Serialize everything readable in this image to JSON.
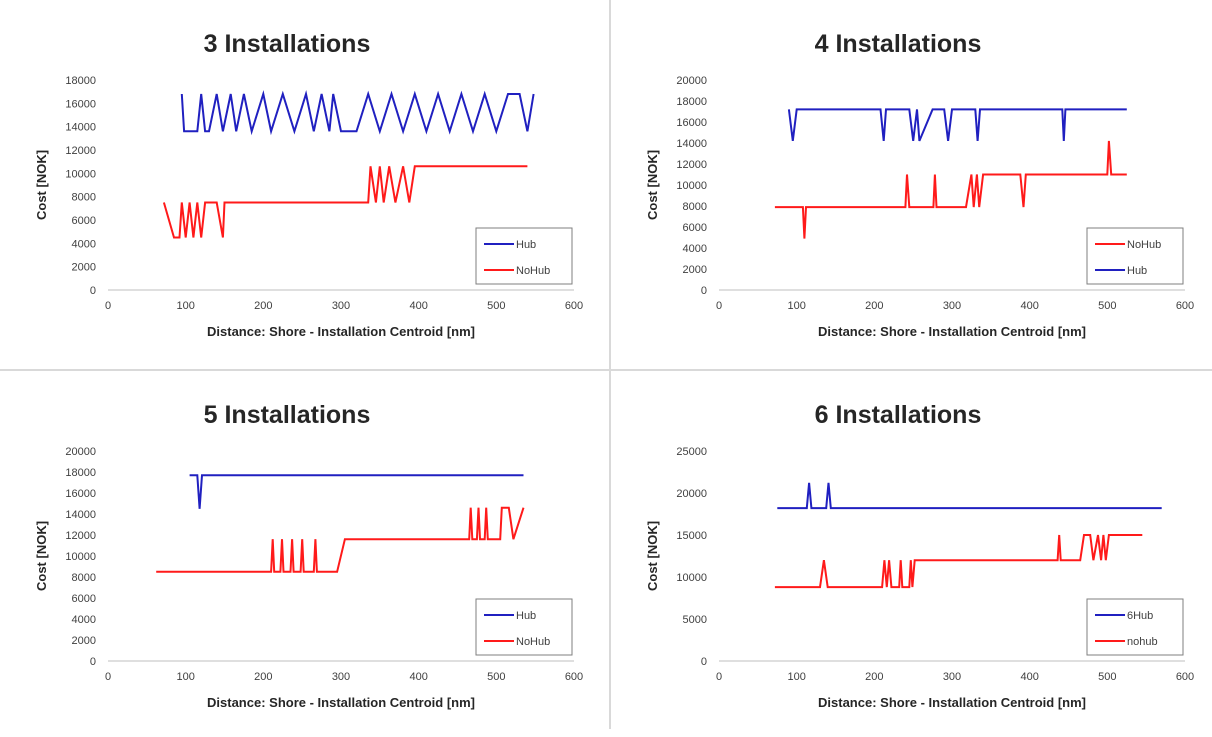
{
  "colors": {
    "hub": "#2020c0",
    "nohub": "#ff1a1a",
    "axis": "#bfbfbf",
    "text": "#262626"
  },
  "chart_data": [
    {
      "type": "line",
      "title": "3 Installations",
      "xlabel": "Distance: Shore - Installation Centroid [nm]",
      "ylabel": "Cost [NOK]",
      "xlim": [
        0,
        600
      ],
      "xticks": [
        0,
        100,
        200,
        300,
        400,
        500,
        600
      ],
      "ylim": [
        0,
        18000
      ],
      "yticks": [
        0,
        2000,
        4000,
        6000,
        8000,
        10000,
        12000,
        14000,
        16000,
        18000
      ],
      "legend_position": "bottom-right",
      "series": [
        {
          "name": "Hub",
          "color": "#2020c0",
          "x": [
            95,
            98,
            115,
            120,
            125,
            130,
            140,
            148,
            158,
            165,
            175,
            185,
            200,
            210,
            225,
            240,
            255,
            265,
            275,
            285,
            290,
            300,
            310,
            320,
            335,
            350,
            365,
            380,
            395,
            410,
            425,
            440,
            455,
            470,
            485,
            500,
            515,
            520,
            530,
            540,
            548
          ],
          "y": [
            16800,
            13600,
            13600,
            16800,
            13600,
            13600,
            16800,
            13600,
            16800,
            13600,
            16800,
            13600,
            16800,
            13600,
            16800,
            13600,
            16800,
            13600,
            16800,
            13600,
            16800,
            13600,
            13600,
            13600,
            16800,
            13600,
            16800,
            13600,
            16800,
            13600,
            16800,
            13600,
            16800,
            13600,
            16800,
            13600,
            16800,
            16800,
            16800,
            13600,
            16800
          ]
        },
        {
          "name": "NoHub",
          "color": "#ff1a1a",
          "x": [
            72,
            85,
            92,
            95,
            100,
            105,
            110,
            115,
            120,
            125,
            130,
            140,
            148,
            150,
            200,
            250,
            300,
            335,
            338,
            345,
            350,
            355,
            362,
            370,
            380,
            388,
            395,
            400,
            450,
            500,
            540
          ],
          "y": [
            7500,
            4500,
            4500,
            7500,
            4500,
            7500,
            4500,
            7500,
            4500,
            7500,
            7500,
            7500,
            4500,
            7500,
            7500,
            7500,
            7500,
            7500,
            10600,
            7500,
            10600,
            7500,
            10600,
            7500,
            10600,
            7500,
            10600,
            10600,
            10600,
            10600,
            10600
          ]
        }
      ]
    },
    {
      "type": "line",
      "title": "4 Installations",
      "xlabel": "Distance: Shore - Installation Centroid [nm]",
      "ylabel": "Cost [NOK]",
      "xlim": [
        0,
        600
      ],
      "xticks": [
        0,
        100,
        200,
        300,
        400,
        500,
        600
      ],
      "ylim": [
        0,
        20000
      ],
      "yticks": [
        0,
        2000,
        4000,
        6000,
        8000,
        10000,
        12000,
        14000,
        16000,
        18000,
        20000
      ],
      "legend_position": "bottom-right",
      "series": [
        {
          "name": "NoHub",
          "color": "#ff1a1a",
          "x": [
            72,
            108,
            110,
            112,
            150,
            200,
            240,
            242,
            245,
            276,
            278,
            280,
            300,
            318,
            325,
            328,
            332,
            335,
            340,
            345,
            388,
            392,
            395,
            450,
            500,
            502,
            505,
            525
          ],
          "y": [
            7900,
            7900,
            4900,
            7900,
            7900,
            7900,
            7900,
            11000,
            7900,
            7900,
            11000,
            7900,
            7900,
            7900,
            11000,
            7900,
            11000,
            7900,
            11000,
            11000,
            11000,
            7900,
            11000,
            11000,
            11000,
            14200,
            11000,
            11000
          ]
        },
        {
          "name": "Hub",
          "color": "#2020c0",
          "x": [
            90,
            95,
            100,
            150,
            208,
            212,
            215,
            245,
            250,
            255,
            258,
            275,
            280,
            290,
            295,
            300,
            330,
            333,
            336,
            400,
            442,
            444,
            446,
            525
          ],
          "y": [
            17200,
            14200,
            17200,
            17200,
            17200,
            14200,
            17200,
            17200,
            14200,
            17200,
            14200,
            17200,
            17200,
            17200,
            14200,
            17200,
            17200,
            14200,
            17200,
            17200,
            17200,
            14200,
            17200,
            17200
          ]
        }
      ]
    },
    {
      "type": "line",
      "title": "5 Installations",
      "xlabel": "Distance: Shore - Installation Centroid [nm]",
      "ylabel": "Cost [NOK]",
      "xlim": [
        0,
        600
      ],
      "xticks": [
        0,
        100,
        200,
        300,
        400,
        500,
        600
      ],
      "ylim": [
        0,
        20000
      ],
      "yticks": [
        0,
        2000,
        4000,
        6000,
        8000,
        10000,
        12000,
        14000,
        16000,
        18000,
        20000
      ],
      "legend_position": "bottom-right",
      "series": [
        {
          "name": "Hub",
          "color": "#2020c0",
          "x": [
            105,
            115,
            118,
            121,
            200,
            300,
            400,
            500,
            535
          ],
          "y": [
            17700,
            17700,
            14500,
            17700,
            17700,
            17700,
            17700,
            17700,
            17700
          ]
        },
        {
          "name": "NoHub",
          "color": "#ff1a1a",
          "x": [
            62,
            150,
            210,
            212,
            214,
            222,
            224,
            226,
            235,
            237,
            239,
            248,
            250,
            252,
            265,
            267,
            269,
            295,
            305,
            320,
            400,
            465,
            467,
            469,
            475,
            477,
            479,
            485,
            487,
            489,
            505,
            507,
            512,
            516,
            522,
            535
          ],
          "y": [
            8500,
            8500,
            8500,
            11600,
            8500,
            8500,
            11600,
            8500,
            8500,
            11600,
            8500,
            8500,
            11600,
            8500,
            8500,
            11600,
            8500,
            8500,
            11600,
            11600,
            11600,
            11600,
            14600,
            11600,
            11600,
            14600,
            11600,
            11600,
            14600,
            11600,
            11600,
            14600,
            14600,
            14600,
            11600,
            14600
          ]
        }
      ]
    },
    {
      "type": "line",
      "title": "6 Installations",
      "xlabel": "Distance: Shore - Installation Centroid [nm]",
      "ylabel": "Cost [NOK]",
      "xlim": [
        0,
        600
      ],
      "xticks": [
        0,
        100,
        200,
        300,
        400,
        500,
        600
      ],
      "ylim": [
        0,
        25000
      ],
      "yticks": [
        0,
        5000,
        10000,
        15000,
        20000,
        25000
      ],
      "legend_position": "bottom-right",
      "series": [
        {
          "name": "6Hub",
          "color": "#2020c0",
          "x": [
            75,
            113,
            116,
            119,
            138,
            141,
            144,
            200,
            300,
            400,
            500,
            570
          ],
          "y": [
            18200,
            18200,
            21200,
            18200,
            18200,
            21200,
            18200,
            18200,
            18200,
            18200,
            18200,
            18200
          ]
        },
        {
          "name": "nohub",
          "color": "#ff1a1a",
          "x": [
            72,
            130,
            135,
            140,
            200,
            210,
            213,
            216,
            219,
            222,
            232,
            234,
            236,
            245,
            247,
            249,
            252,
            300,
            350,
            400,
            436,
            438,
            440,
            465,
            470,
            475,
            478,
            482,
            488,
            492,
            495,
            498,
            502,
            545
          ],
          "y": [
            8800,
            8800,
            12000,
            8800,
            8800,
            8800,
            12000,
            8800,
            12000,
            8800,
            8800,
            12000,
            8800,
            8800,
            12000,
            8800,
            12000,
            12000,
            12000,
            12000,
            12000,
            15000,
            12000,
            12000,
            15000,
            15000,
            15000,
            12000,
            15000,
            12000,
            15000,
            12000,
            15000,
            15000
          ]
        }
      ]
    }
  ]
}
